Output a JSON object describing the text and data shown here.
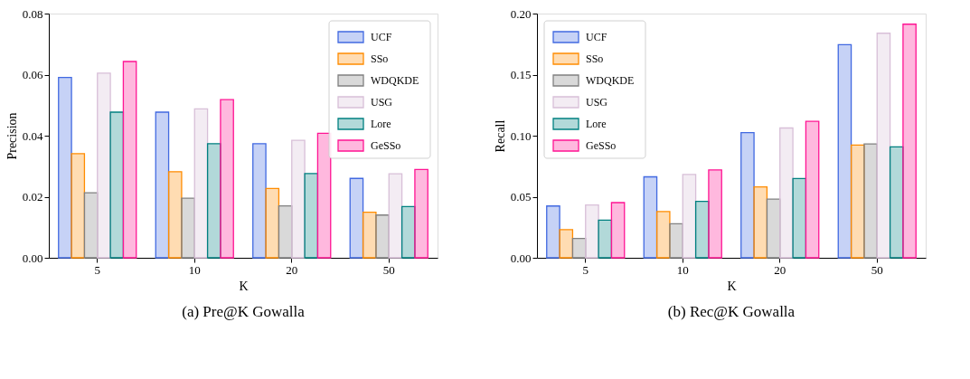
{
  "chart_data": [
    {
      "type": "bar",
      "title": "(a) Pre@K Gowalla",
      "xlabel": "K",
      "ylabel": "Precision",
      "categories": [
        "5",
        "10",
        "20",
        "50"
      ],
      "ylim": [
        0,
        0.08
      ],
      "yticks": [
        {
          "value": 0,
          "label": "0.00"
        },
        {
          "value": 0.02,
          "label": "0.02"
        },
        {
          "value": 0.04,
          "label": "0.04"
        },
        {
          "value": 0.06,
          "label": "0.06"
        },
        {
          "value": 0.08,
          "label": "0.08"
        }
      ],
      "grid": false,
      "legend": "top right",
      "series": [
        {
          "name": "UCF",
          "color": "#4169e1",
          "values": [
            0.0591,
            0.0477,
            0.0374,
            0.026
          ]
        },
        {
          "name": "SSo",
          "color": "#ff8c00",
          "values": [
            0.0341,
            0.0282,
            0.0227,
            0.0149
          ]
        },
        {
          "name": "WDQKDE",
          "color": "#808080",
          "values": [
            0.0213,
            0.0195,
            0.017,
            0.014
          ]
        },
        {
          "name": "USG",
          "color": "#d8bfd8",
          "values": [
            0.0605,
            0.0488,
            0.0385,
            0.0275
          ]
        },
        {
          "name": "Lore",
          "color": "#008080",
          "values": [
            0.0477,
            0.0374,
            0.0276,
            0.0168
          ]
        },
        {
          "name": "GeSSo",
          "color": "#ff1493",
          "values": [
            0.0643,
            0.0518,
            0.0408,
            0.0289
          ]
        }
      ]
    },
    {
      "type": "bar",
      "title": "(b) Rec@K Gowalla",
      "xlabel": "K",
      "ylabel": "Recall",
      "categories": [
        "5",
        "10",
        "20",
        "50"
      ],
      "ylim": [
        0,
        0.2
      ],
      "yticks": [
        {
          "value": 0,
          "label": "0.00"
        },
        {
          "value": 0.05,
          "label": "0.05"
        },
        {
          "value": 0.1,
          "label": "0.10"
        },
        {
          "value": 0.15,
          "label": "0.15"
        },
        {
          "value": 0.2,
          "label": "0.20"
        }
      ],
      "grid": false,
      "legend": "top left",
      "series": [
        {
          "name": "UCF",
          "color": "#4169e1",
          "values": [
            0.0424,
            0.0663,
            0.1025,
            0.1745
          ]
        },
        {
          "name": "SSo",
          "color": "#ff8c00",
          "values": [
            0.023,
            0.0379,
            0.058,
            0.0923
          ]
        },
        {
          "name": "WDQKDE",
          "color": "#808080",
          "values": [
            0.0159,
            0.0279,
            0.048,
            0.0933
          ]
        },
        {
          "name": "USG",
          "color": "#d8bfd8",
          "values": [
            0.0433,
            0.0682,
            0.1063,
            0.1839
          ]
        },
        {
          "name": "Lore",
          "color": "#008080",
          "values": [
            0.0308,
            0.0462,
            0.0649,
            0.0909
          ]
        },
        {
          "name": "GeSSo",
          "color": "#ff1493",
          "values": [
            0.0452,
            0.072,
            0.1117,
            0.1913
          ]
        }
      ]
    }
  ]
}
